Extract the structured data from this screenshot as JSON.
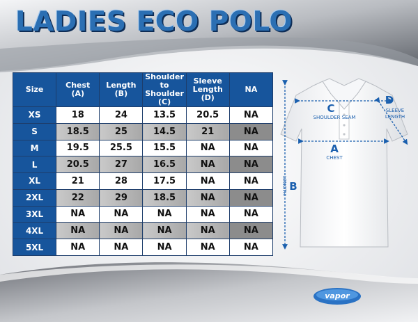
{
  "title": "LADIES ECO POLO",
  "table": {
    "headers": [
      "Size",
      "Chest (A)",
      "Length (B)",
      "Shoulder to Shoulder (C)",
      "Sleeve Length (D)",
      "NA"
    ],
    "header_lines": [
      [
        "Size"
      ],
      [
        "Chest",
        "(A)"
      ],
      [
        "Length",
        "(B)"
      ],
      [
        "Shoulder to",
        "Shoulder (C)"
      ],
      [
        "Sleeve",
        "Length (D)"
      ],
      [
        "NA"
      ]
    ],
    "rows": [
      [
        "XS",
        "18",
        "24",
        "13.5",
        "20.5",
        "NA"
      ],
      [
        "S",
        "18.5",
        "25",
        "14.5",
        "21",
        "NA"
      ],
      [
        "M",
        "19.5",
        "25.5",
        "15.5",
        "NA",
        "NA"
      ],
      [
        "L",
        "20.5",
        "27",
        "16.5",
        "NA",
        "NA"
      ],
      [
        "XL",
        "21",
        "28",
        "17.5",
        "NA",
        "NA"
      ],
      [
        "2XL",
        "22",
        "29",
        "18.5",
        "NA",
        "NA"
      ],
      [
        "3XL",
        "NA",
        "NA",
        "NA",
        "NA",
        "NA"
      ],
      [
        "4XL",
        "NA",
        "NA",
        "NA",
        "NA",
        "NA"
      ],
      [
        "5XL",
        "NA",
        "NA",
        "NA",
        "NA",
        "NA"
      ]
    ]
  },
  "diagram": {
    "c_letter": "C",
    "c_label": "SHOULDER SEAM",
    "a_letter": "A",
    "a_label": "CHEST",
    "b_letter": "B",
    "b_label": "LENGTH",
    "d_letter": "D",
    "d_label_1": "SLEEVE",
    "d_label_2": "LENGTH"
  },
  "logo_text": "vapor",
  "colors": {
    "header_blue": "#17559c",
    "title_blue": "#2b6fb3",
    "measure_blue": "#1a5fae"
  }
}
